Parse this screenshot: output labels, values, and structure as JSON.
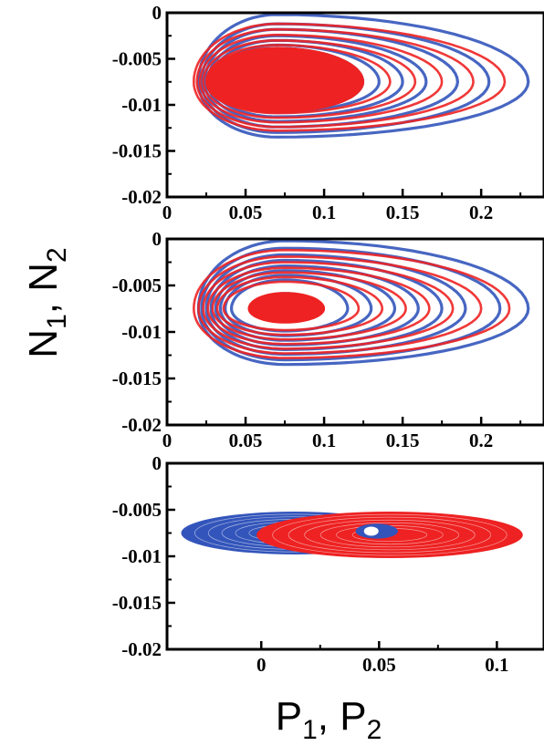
{
  "figure": {
    "ylabel": {
      "a": "N",
      "a_sub": "1",
      "sep": ", ",
      "b": "N",
      "b_sub": "2"
    },
    "xlabel": {
      "a": "P",
      "a_sub": "1",
      "sep": ", ",
      "b": "P",
      "b_sub": "2"
    }
  },
  "colors": {
    "series1": "#3355bb",
    "series2": "#ee2222",
    "axis": "#000000"
  },
  "chart_data": [
    {
      "type": "line",
      "panel": "top",
      "xlim": [
        0,
        0.24
      ],
      "ylim": [
        -0.02,
        0
      ],
      "xticks": [
        0,
        0.05,
        0.1,
        0.15,
        0.2
      ],
      "xtick_labels": [
        "0",
        "0.05",
        "0.1",
        "0.15",
        "0.2"
      ],
      "yticks": [
        0,
        -0.005,
        -0.01,
        -0.015,
        -0.02
      ],
      "ytick_labels": [
        "0",
        "-0.005",
        "-0.01",
        "-0.015",
        "-0.02"
      ],
      "grid": false,
      "series": [
        {
          "color": "blue",
          "center": [
            0.07,
            -0.0075
          ],
          "loops": [
            {
              "x_min": 0.02,
              "x_max": 0.23,
              "y_min": -0.0135,
              "y_max": -0.0002
            },
            {
              "x_min": 0.022,
              "x_max": 0.205,
              "y_min": -0.013,
              "y_max": -0.0012
            },
            {
              "x_min": 0.024,
              "x_max": 0.185,
              "y_min": -0.0124,
              "y_max": -0.0018
            },
            {
              "x_min": 0.026,
              "x_max": 0.165,
              "y_min": -0.0118,
              "y_max": -0.0025
            },
            {
              "x_min": 0.028,
              "x_max": 0.15,
              "y_min": -0.0113,
              "y_max": -0.003
            },
            {
              "x_min": 0.03,
              "x_max": 0.135,
              "y_min": -0.0108,
              "y_max": -0.0035
            }
          ],
          "filled_core": {
            "x_min": 0.03,
            "x_max": 0.125,
            "y_min": -0.0108,
            "y_max": -0.0038
          }
        },
        {
          "color": "red",
          "center": [
            0.07,
            -0.0075
          ],
          "loops": [
            {
              "x_min": 0.017,
              "x_max": 0.215,
              "y_min": -0.0128,
              "y_max": -0.0012
            },
            {
              "x_min": 0.019,
              "x_max": 0.195,
              "y_min": -0.0124,
              "y_max": -0.0018
            },
            {
              "x_min": 0.021,
              "x_max": 0.175,
              "y_min": -0.0119,
              "y_max": -0.0024
            },
            {
              "x_min": 0.023,
              "x_max": 0.158,
              "y_min": -0.0114,
              "y_max": -0.003
            },
            {
              "x_min": 0.025,
              "x_max": 0.142,
              "y_min": -0.0109,
              "y_max": -0.0035
            }
          ],
          "filled_core": {
            "x_min": 0.025,
            "x_max": 0.125,
            "y_min": -0.0108,
            "y_max": -0.0038
          }
        }
      ]
    },
    {
      "type": "line",
      "panel": "middle",
      "xlim": [
        0,
        0.24
      ],
      "ylim": [
        -0.02,
        0
      ],
      "xticks": [
        0,
        0.05,
        0.1,
        0.15,
        0.2
      ],
      "xtick_labels": [
        "0",
        "0.05",
        "0.1",
        "0.15",
        "0.2"
      ],
      "yticks": [
        0,
        -0.005,
        -0.01,
        -0.015,
        -0.02
      ],
      "ytick_labels": [
        "0",
        "-0.005",
        "-0.01",
        "-0.015",
        "-0.02"
      ],
      "grid": false,
      "series": [
        {
          "color": "blue",
          "center": [
            0.075,
            -0.0075
          ],
          "loops": [
            {
              "x_min": 0.02,
              "x_max": 0.23,
              "y_min": -0.0135,
              "y_max": -0.0002
            },
            {
              "x_min": 0.022,
              "x_max": 0.212,
              "y_min": -0.013,
              "y_max": -0.001
            },
            {
              "x_min": 0.025,
              "x_max": 0.19,
              "y_min": -0.0124,
              "y_max": -0.0017
            },
            {
              "x_min": 0.028,
              "x_max": 0.175,
              "y_min": -0.0119,
              "y_max": -0.0023
            },
            {
              "x_min": 0.031,
              "x_max": 0.16,
              "y_min": -0.0114,
              "y_max": -0.0029
            },
            {
              "x_min": 0.034,
              "x_max": 0.145,
              "y_min": -0.0109,
              "y_max": -0.0034
            },
            {
              "x_min": 0.037,
              "x_max": 0.13,
              "y_min": -0.0104,
              "y_max": -0.0039
            },
            {
              "x_min": 0.041,
              "x_max": 0.115,
              "y_min": -0.0099,
              "y_max": -0.0044
            }
          ],
          "filled_core": {
            "x_min": 0.055,
            "x_max": 0.098,
            "y_min": -0.0089,
            "y_max": -0.0058
          }
        },
        {
          "color": "red",
          "center": [
            0.075,
            -0.0075
          ],
          "loops": [
            {
              "x_min": 0.017,
              "x_max": 0.218,
              "y_min": -0.0128,
              "y_max": -0.0012
            },
            {
              "x_min": 0.02,
              "x_max": 0.2,
              "y_min": -0.0123,
              "y_max": -0.0019
            },
            {
              "x_min": 0.023,
              "x_max": 0.182,
              "y_min": -0.0118,
              "y_max": -0.0025
            },
            {
              "x_min": 0.026,
              "x_max": 0.167,
              "y_min": -0.0113,
              "y_max": -0.0031
            },
            {
              "x_min": 0.029,
              "x_max": 0.152,
              "y_min": -0.0108,
              "y_max": -0.0036
            },
            {
              "x_min": 0.032,
              "x_max": 0.137,
              "y_min": -0.0103,
              "y_max": -0.0041
            },
            {
              "x_min": 0.036,
              "x_max": 0.122,
              "y_min": -0.0098,
              "y_max": -0.0046
            }
          ],
          "filled_core": {
            "x_min": 0.052,
            "x_max": 0.1,
            "y_min": -0.009,
            "y_max": -0.0058
          }
        }
      ]
    },
    {
      "type": "line",
      "panel": "bottom",
      "xlim": [
        -0.04,
        0.12
      ],
      "ylim": [
        -0.02,
        0
      ],
      "xticks": [
        0,
        0.05,
        0.1
      ],
      "xtick_labels": [
        "0",
        "0.05",
        "0.1"
      ],
      "yticks": [
        0,
        -0.005,
        -0.01,
        -0.015,
        -0.02
      ],
      "ytick_labels": [
        "0",
        "-0.005",
        "-0.01",
        "-0.015",
        "-0.02"
      ],
      "grid": false,
      "series": [
        {
          "color": "blue",
          "center": [
            0.0,
            -0.0075
          ],
          "outer": {
            "x_min": -0.034,
            "x_max": 0.062,
            "y_min": -0.0098,
            "y_max": -0.0052
          },
          "hole": {
            "cx": 0.049,
            "cy": -0.0073,
            "rx": 0.01,
            "ry": 0.0009
          }
        },
        {
          "color": "red",
          "center": [
            0.056,
            -0.0075
          ],
          "outer": {
            "x_min": -0.002,
            "x_max": 0.111,
            "y_min": -0.0102,
            "y_max": -0.0052
          },
          "hole": {
            "cx": 0.049,
            "cy": -0.0073,
            "rx": 0.009,
            "ry": 0.0008
          }
        }
      ]
    }
  ]
}
